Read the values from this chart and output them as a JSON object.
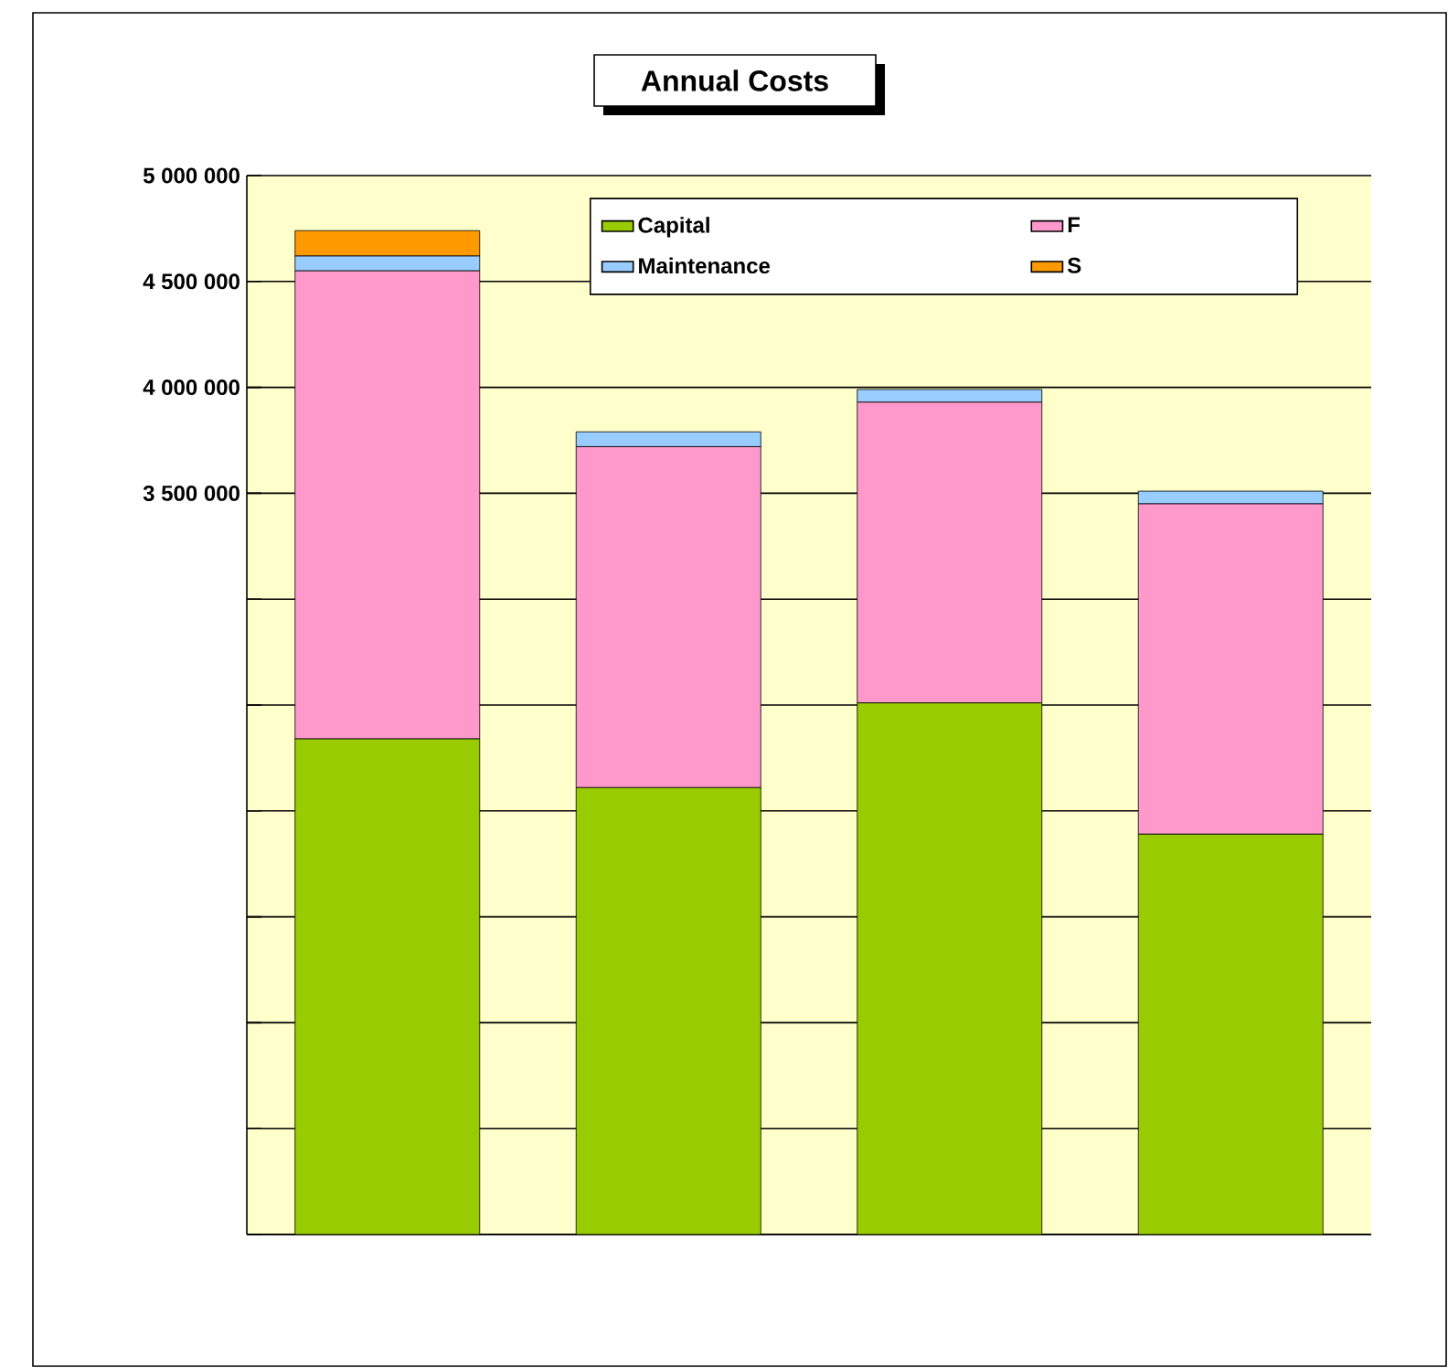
{
  "chart_data": {
    "type": "bar",
    "title": "Annual Costs",
    "stacked": true,
    "categories": [
      null,
      null,
      null,
      null
    ],
    "series": [
      {
        "name": "Capital",
        "color": "#99cc00",
        "values": [
          2340000,
          2110000,
          2510000,
          1890000
        ]
      },
      {
        "name": "F",
        "color": "#ff99cc",
        "values": [
          2210000,
          1610000,
          1420000,
          1560000
        ]
      },
      {
        "name": "Maintenance",
        "color": "#99ccff",
        "values": [
          70000,
          70000,
          60000,
          60000
        ]
      },
      {
        "name": "S",
        "color": "#ff9900",
        "values": [
          120000,
          null,
          null,
          null
        ]
      }
    ],
    "ylim": [
      0,
      5000000
    ],
    "yticks": [
      {
        "value": 0,
        "label": null
      },
      {
        "value": 500000,
        "label": null
      },
      {
        "value": 1000000,
        "label": null
      },
      {
        "value": 1500000,
        "label": null
      },
      {
        "value": 2000000,
        "label": null
      },
      {
        "value": 2500000,
        "label": null
      },
      {
        "value": 3000000,
        "label": null
      },
      {
        "value": 3500000,
        "label": "3 500 000"
      },
      {
        "value": 4000000,
        "label": "4 000 000"
      },
      {
        "value": 4500000,
        "label": "4 500 000"
      },
      {
        "value": 5000000,
        "label": "5 000 000"
      }
    ],
    "grid": "y",
    "legend": "top right"
  }
}
